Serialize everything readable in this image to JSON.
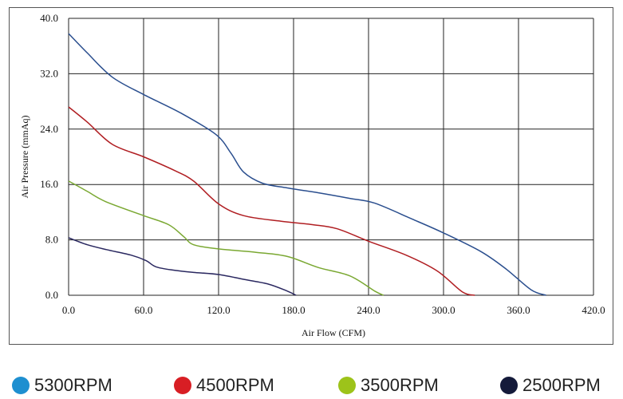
{
  "chart_data": {
    "type": "line",
    "title": "",
    "xlabel": "Air Flow (CFM)",
    "ylabel": "Air Pressure (mmAq)",
    "xlim": [
      0,
      420
    ],
    "ylim": [
      0,
      40
    ],
    "x_ticks": [
      "0.0",
      "60.0",
      "120.0",
      "180.0",
      "240.0",
      "300.0",
      "360.0",
      "420.0"
    ],
    "y_ticks": [
      "0.0",
      "8.0",
      "16.0",
      "24.0",
      "32.0",
      "40.0"
    ],
    "grid": true,
    "legend_position": "bottom",
    "series": [
      {
        "name": "5300RPM",
        "line_color": "#2a4e8e",
        "dot_color": "#1e8fd0",
        "points": [
          [
            0,
            37.8
          ],
          [
            15,
            35.0
          ],
          [
            35,
            31.5
          ],
          [
            60,
            29.0
          ],
          [
            90,
            26.3
          ],
          [
            118,
            23.2
          ],
          [
            130,
            20.5
          ],
          [
            140,
            17.8
          ],
          [
            155,
            16.2
          ],
          [
            175,
            15.5
          ],
          [
            200,
            14.8
          ],
          [
            225,
            14.0
          ],
          [
            245,
            13.3
          ],
          [
            275,
            11.0
          ],
          [
            300,
            9.0
          ],
          [
            330,
            6.3
          ],
          [
            350,
            3.8
          ],
          [
            370,
            0.8
          ],
          [
            382,
            0
          ]
        ]
      },
      {
        "name": "4500RPM",
        "line_color": "#b01e22",
        "dot_color": "#d81e24",
        "points": [
          [
            0,
            27.2
          ],
          [
            15,
            25.0
          ],
          [
            35,
            21.8
          ],
          [
            60,
            20.0
          ],
          [
            85,
            18.0
          ],
          [
            100,
            16.5
          ],
          [
            120,
            13.2
          ],
          [
            140,
            11.5
          ],
          [
            170,
            10.7
          ],
          [
            195,
            10.2
          ],
          [
            215,
            9.6
          ],
          [
            240,
            7.8
          ],
          [
            270,
            5.8
          ],
          [
            295,
            3.5
          ],
          [
            315,
            0.5
          ],
          [
            325,
            0
          ]
        ]
      },
      {
        "name": "3500RPM",
        "line_color": "#7aa832",
        "dot_color": "#9dc31a",
        "points": [
          [
            0,
            16.5
          ],
          [
            15,
            15.0
          ],
          [
            30,
            13.5
          ],
          [
            60,
            11.5
          ],
          [
            80,
            10.2
          ],
          [
            92,
            8.5
          ],
          [
            100,
            7.3
          ],
          [
            120,
            6.7
          ],
          [
            150,
            6.2
          ],
          [
            175,
            5.6
          ],
          [
            200,
            4.0
          ],
          [
            225,
            2.8
          ],
          [
            245,
            0.6
          ],
          [
            252,
            0
          ]
        ]
      },
      {
        "name": "2500RPM",
        "line_color": "#2a2860",
        "dot_color": "#141a3a",
        "points": [
          [
            0,
            8.3
          ],
          [
            15,
            7.3
          ],
          [
            30,
            6.6
          ],
          [
            50,
            5.8
          ],
          [
            62,
            5.0
          ],
          [
            70,
            4.1
          ],
          [
            85,
            3.6
          ],
          [
            100,
            3.3
          ],
          [
            120,
            3.0
          ],
          [
            140,
            2.3
          ],
          [
            160,
            1.6
          ],
          [
            175,
            0.6
          ],
          [
            182,
            0
          ]
        ]
      }
    ]
  }
}
